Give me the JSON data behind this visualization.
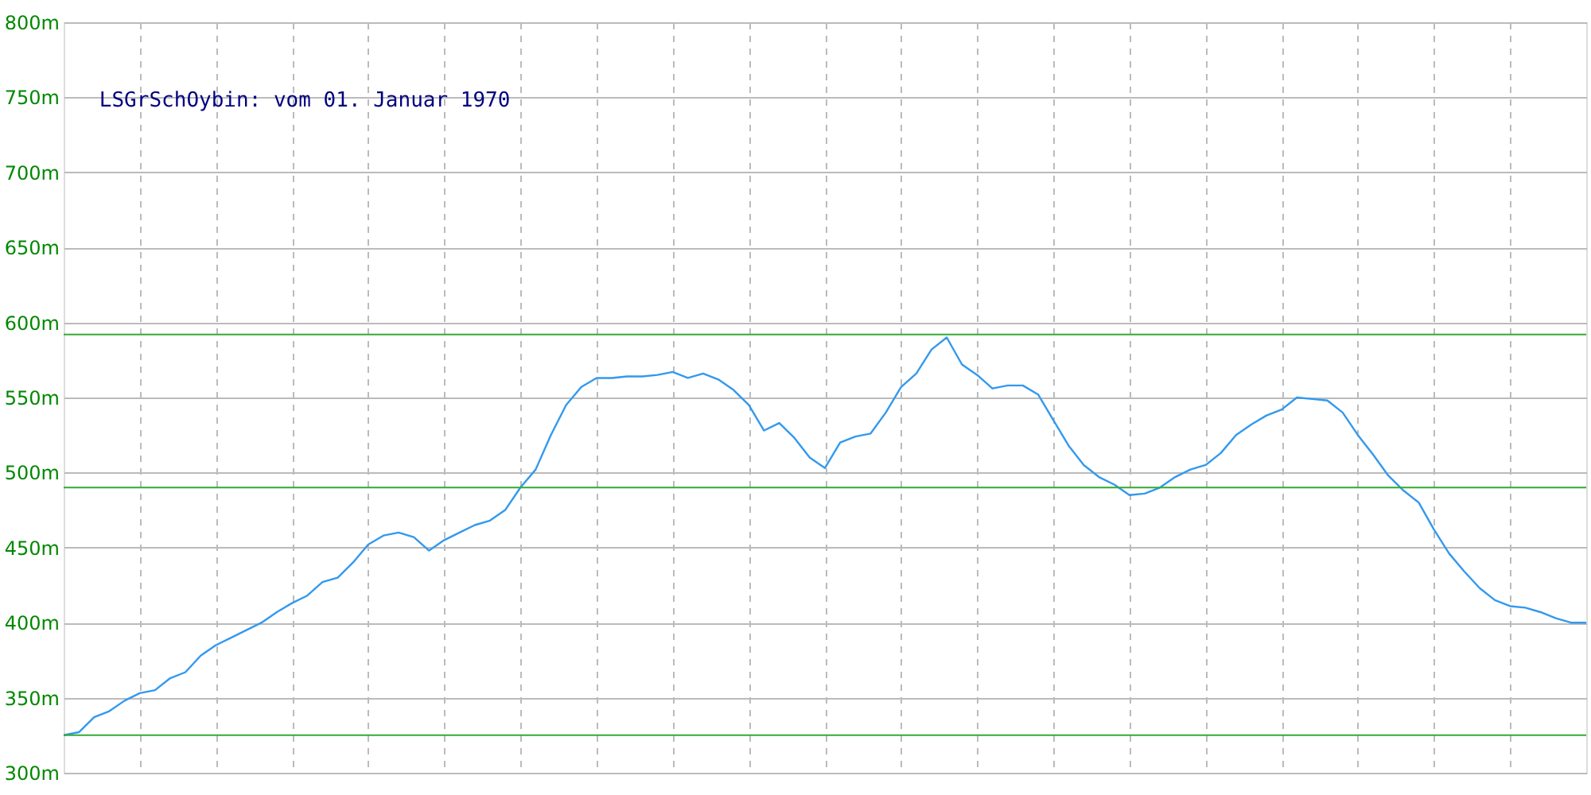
{
  "chart_data": {
    "type": "line",
    "title": "LSGrSchOybin: vom 01. Januar 1970",
    "categories": [
      null,
      null,
      null,
      null,
      null,
      null,
      null,
      null,
      null,
      null,
      null,
      null,
      null,
      null,
      null,
      null,
      null,
      null,
      null,
      null,
      null,
      null,
      null,
      null,
      null,
      null,
      null,
      null,
      null,
      null,
      null,
      null,
      null,
      null,
      null,
      null,
      null,
      null,
      null,
      null,
      null,
      null,
      null,
      null,
      null,
      null,
      null,
      null,
      null,
      null,
      null,
      null,
      null,
      null,
      null,
      null,
      null,
      null,
      null,
      null,
      null,
      null,
      null,
      null,
      null,
      null,
      null,
      null,
      null,
      null,
      null,
      null,
      null,
      null,
      null,
      null,
      null,
      null,
      null,
      null,
      null,
      null,
      null,
      null,
      null,
      null,
      null,
      null,
      null,
      null,
      null,
      null,
      null,
      null,
      null,
      null,
      null,
      null,
      null,
      null,
      null
    ],
    "series": [
      {
        "color": "#3399ee",
        "values": [
          325,
          327,
          337,
          341,
          348,
          353,
          355,
          363,
          367,
          378,
          385,
          390,
          395,
          400,
          407,
          413,
          418,
          427,
          430,
          440,
          452,
          458,
          460,
          457,
          448,
          455,
          460,
          465,
          468,
          475,
          490,
          502,
          525,
          545,
          557,
          563,
          563,
          564,
          564,
          565,
          567,
          563,
          566,
          562,
          555,
          545,
          528,
          533,
          523,
          510,
          503,
          520,
          524,
          526,
          540,
          557,
          566,
          582,
          590,
          572,
          565,
          556,
          558,
          558,
          552,
          535,
          518,
          505,
          497,
          492,
          485,
          486,
          490,
          497,
          502,
          505,
          513,
          525,
          532,
          538,
          542,
          550,
          549,
          548,
          540,
          525,
          512,
          498,
          488,
          480,
          462,
          446,
          434,
          423,
          415,
          411,
          410,
          407,
          403,
          400,
          400
        ]
      }
    ],
    "ylim": [
      300,
      800
    ],
    "yticks": [
      {
        "value": 300,
        "label": "300m"
      },
      {
        "value": 350,
        "label": "350m"
      },
      {
        "value": 400,
        "label": "400m"
      },
      {
        "value": 450,
        "label": "450m"
      },
      {
        "value": 500,
        "label": "500m"
      },
      {
        "value": 550,
        "label": "550m"
      },
      {
        "value": 600,
        "label": "600m"
      },
      {
        "value": 650,
        "label": "650m"
      },
      {
        "value": 700,
        "label": "700m"
      },
      {
        "value": 750,
        "label": "750m"
      },
      {
        "value": 800,
        "label": "800m"
      }
    ],
    "tick_labels": "y",
    "grid": true,
    "marker": "none",
    "line_style": "solid",
    "ref_lines": [
      {
        "axis": "y",
        "value": 592,
        "label": null,
        "color": "#33aa33"
      },
      {
        "axis": "y",
        "value": 490,
        "label": null,
        "color": "#33aa33"
      },
      {
        "axis": "y",
        "value": 325,
        "label": null,
        "color": "#33aa33"
      }
    ]
  }
}
